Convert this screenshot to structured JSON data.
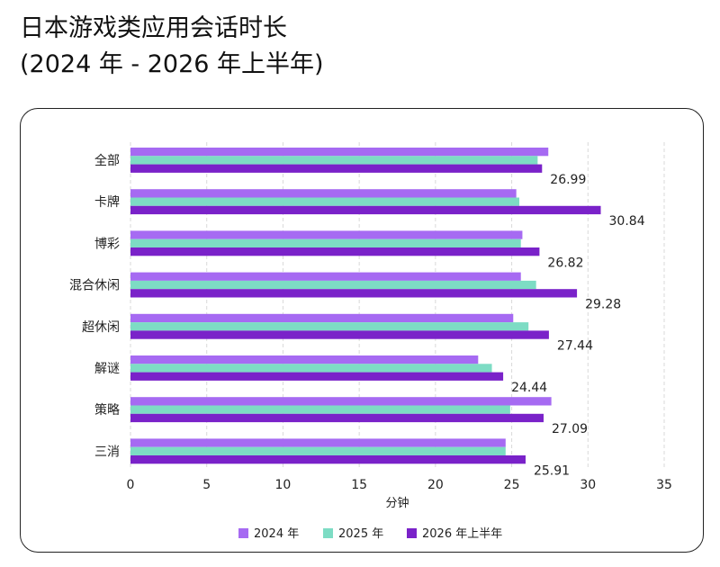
{
  "title_line1": "日本游戏类应用会话时长",
  "title_line2": "(2024 年 - 2026 年上半年)",
  "chart_data": {
    "type": "bar",
    "orientation": "horizontal",
    "categories": [
      "全部",
      "卡牌",
      "博彩",
      "混合休闲",
      "超休闲",
      "解谜",
      "策略",
      "三消"
    ],
    "series": [
      {
        "name": "2024 年",
        "color": "#a66af2",
        "values": [
          27.4,
          25.3,
          25.7,
          25.6,
          25.1,
          22.8,
          27.6,
          24.6
        ]
      },
      {
        "name": "2025 年",
        "color": "#7ddcc4",
        "values": [
          26.7,
          25.5,
          25.6,
          26.6,
          26.1,
          23.7,
          24.9,
          24.6
        ]
      },
      {
        "name": "2026 年上半年",
        "color": "#7a22c9",
        "values": [
          26.99,
          30.84,
          26.82,
          29.28,
          27.44,
          24.44,
          27.09,
          25.91
        ]
      }
    ],
    "data_labels": [
      "26.99",
      "30.84",
      "26.82",
      "29.28",
      "27.44",
      "24.44",
      "27.09",
      "25.91"
    ],
    "xlabel": "分钟",
    "ylabel": "",
    "xlim": [
      0,
      35
    ],
    "xticks": [
      "0",
      "5",
      "10",
      "15",
      "20",
      "25",
      "30",
      "35"
    ],
    "grid": "vertical dashed",
    "legend_position": "bottom"
  }
}
